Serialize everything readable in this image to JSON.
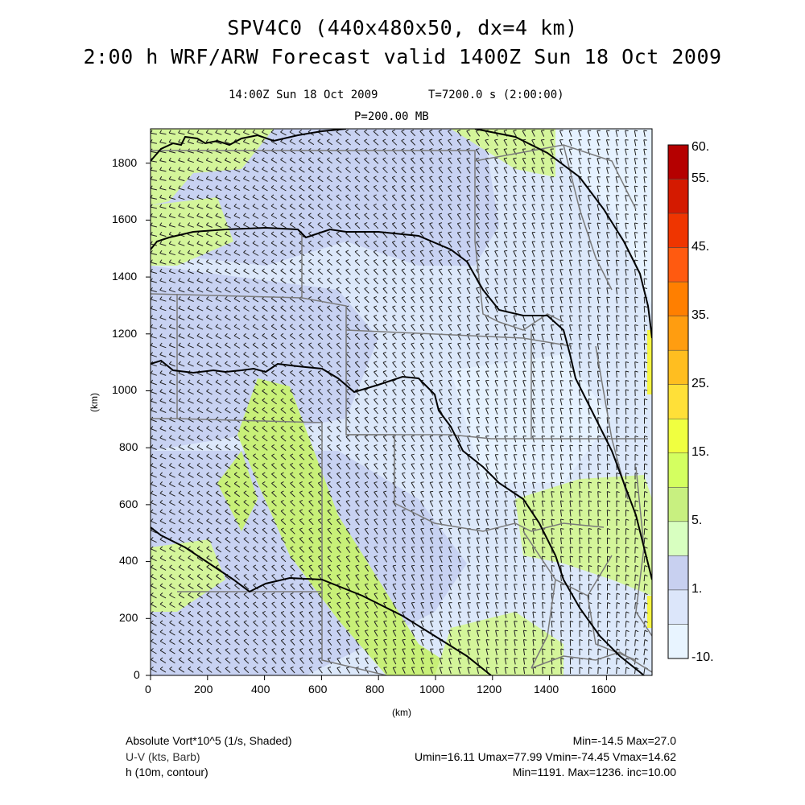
{
  "titles": {
    "line1": "SPV4C0 (440x480x50, dx=4 km)",
    "line2": "2:00 h WRF/ARW Forecast valid 1400Z Sun 18 Oct 2009",
    "time_info": "14:00Z Sun 18 Oct 2009",
    "t_info": "T=7200.0 s (2:00:00)",
    "level": "P=200.00 MB"
  },
  "axes": {
    "x_label": "(km)",
    "y_label": "(km)",
    "x_ticks": [
      "0",
      "200",
      "400",
      "600",
      "800",
      "1000",
      "1200",
      "1400",
      "1600"
    ],
    "y_ticks": [
      "0",
      "200",
      "400",
      "600",
      "800",
      "1000",
      "1200",
      "1400",
      "1600",
      "1800"
    ]
  },
  "colorbar": {
    "labels": [
      "60.",
      "55.",
      "45.",
      "35.",
      "25.",
      "15.",
      "5.",
      "1.",
      "-10."
    ],
    "colors": [
      "#b50000",
      "#d41a00",
      "#ef3500",
      "#ff5a10",
      "#ff7f00",
      "#ff9d10",
      "#ffbe20",
      "#ffe038",
      "#f0ff40",
      "#d4ff60",
      "#c8f080",
      "#d8ffc0",
      "#c8d0f0",
      "#dce6fa",
      "#e8f4ff"
    ]
  },
  "footer": {
    "field1_label": "Absolute Vort*10^5 (1/s, Shaded)",
    "field1_stats": "Min=-14.5 Max=27.0",
    "field2_label": "U-V (kts, Barb)",
    "field2_stats": "Umin=16.11 Umax=77.99 Vmin=-74.45 Vmax=14.62",
    "field3_label": "h (10m, contour)",
    "field3_stats": "Min=1191. Max=1236. inc=10.00"
  },
  "map": {
    "domain_km": {
      "x": [
        0,
        1760
      ],
      "y": [
        0,
        1920
      ]
    },
    "colors": {
      "light_blue": "#dce8fa",
      "lavender": "#c8d2f2",
      "green": "#d4f59a",
      "bright_green": "#c8f078",
      "yellow": "#f5f542",
      "pale": "#eaf6ff"
    }
  }
}
